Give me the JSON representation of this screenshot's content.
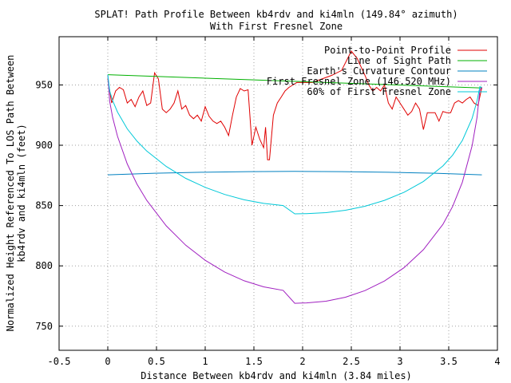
{
  "chart_data": {
    "type": "line",
    "title": "SPLAT! Path Profile Between kb4rdv and ki4mln (149.84° azimuth)",
    "subtitle": "With First Fresnel Zone",
    "xlabel": "Distance Between kb4rdv and ki4mln (3.84 miles)",
    "ylabel_lines": [
      "Normalized Height Referenced To LOS Path Between",
      "kb4rdv and ki4mln (feet)"
    ],
    "xlim": [
      -0.5,
      4
    ],
    "ylim": [
      730,
      990
    ],
    "x_ticks": [
      -0.5,
      0,
      0.5,
      1,
      1.5,
      2,
      2.5,
      3,
      3.5,
      4
    ],
    "x_tick_labels": [
      "-0.5",
      "0",
      "0.5",
      "1",
      "1.5",
      "2",
      "2.5",
      "3",
      "3.5",
      "4"
    ],
    "y_ticks": [
      750,
      800,
      850,
      900,
      950
    ],
    "y_tick_labels": [
      "750",
      "800",
      "850",
      "900",
      "950"
    ],
    "grid": true,
    "legend_position": "top-right",
    "series": [
      {
        "name": "Point-to-Point Profile",
        "color": "#e00000",
        "x": [
          0.0,
          0.04,
          0.08,
          0.12,
          0.16,
          0.2,
          0.24,
          0.28,
          0.32,
          0.36,
          0.4,
          0.44,
          0.48,
          0.52,
          0.56,
          0.6,
          0.64,
          0.68,
          0.72,
          0.76,
          0.8,
          0.84,
          0.88,
          0.92,
          0.96,
          1.0,
          1.04,
          1.08,
          1.12,
          1.16,
          1.2,
          1.24,
          1.28,
          1.32,
          1.36,
          1.4,
          1.44,
          1.48,
          1.52,
          1.56,
          1.6,
          1.62,
          1.64,
          1.66,
          1.7,
          1.74,
          1.78,
          1.82,
          1.86,
          1.9,
          1.94,
          1.98,
          2.02,
          2.1,
          2.2,
          2.3,
          2.4,
          2.5,
          2.56,
          2.6,
          2.64,
          2.68,
          2.72,
          2.76,
          2.8,
          2.84,
          2.88,
          2.92,
          2.96,
          3.0,
          3.04,
          3.08,
          3.12,
          3.16,
          3.2,
          3.24,
          3.28,
          3.32,
          3.36,
          3.4,
          3.44,
          3.48,
          3.52,
          3.56,
          3.6,
          3.64,
          3.68,
          3.72,
          3.76,
          3.8,
          3.84
        ],
        "y": [
          955,
          935,
          945,
          948,
          946,
          935,
          938,
          932,
          940,
          945,
          933,
          935,
          960,
          955,
          930,
          927,
          930,
          935,
          945,
          930,
          933,
          925,
          922,
          925,
          920,
          932,
          924,
          920,
          918,
          920,
          915,
          908,
          925,
          940,
          947,
          945,
          946,
          900,
          915,
          905,
          898,
          915,
          888,
          888,
          925,
          935,
          940,
          945,
          948,
          950,
          952,
          952,
          952,
          952,
          955,
          958,
          962,
          978,
          972,
          965,
          958,
          950,
          945,
          948,
          945,
          950,
          935,
          930,
          940,
          935,
          930,
          925,
          928,
          935,
          930,
          913,
          927,
          927,
          927,
          920,
          928,
          927,
          927,
          935,
          937,
          935,
          938,
          940,
          935,
          933,
          948
        ]
      },
      {
        "name": "Line of Sight Path",
        "color": "#00b000",
        "x": [
          0.0,
          3.84
        ],
        "y": [
          958.5,
          947.5
        ]
      },
      {
        "name": "Earth's Curvature Contour",
        "color": "#0080c0",
        "x": [
          0.0,
          0.48,
          0.96,
          1.44,
          1.92,
          2.4,
          2.88,
          3.36,
          3.84
        ],
        "y": [
          875.5,
          876.8,
          877.6,
          878.1,
          878.3,
          878.1,
          877.6,
          876.8,
          875.5
        ]
      },
      {
        "name": "First Fresnel Zone (146.520 MHz)",
        "color": "#a020c0",
        "x": [
          0.0,
          0.02,
          0.05,
          0.1,
          0.2,
          0.3,
          0.4,
          0.6,
          0.8,
          1.0,
          1.2,
          1.4,
          1.6,
          1.8,
          1.92,
          2.04,
          2.24,
          2.44,
          2.64,
          2.84,
          3.04,
          3.24,
          3.44,
          3.54,
          3.64,
          3.74,
          3.79,
          3.82,
          3.84
        ],
        "y": [
          958.5,
          936.3,
          923.0,
          907.4,
          884.5,
          867.7,
          854.3,
          833.2,
          817.1,
          804.6,
          794.9,
          787.6,
          782.6,
          779.7,
          769.0,
          769.3,
          770.7,
          774.0,
          779.5,
          787.4,
          798.4,
          813.4,
          834.4,
          849.3,
          869.4,
          899.6,
          922.9,
          945.5,
          948.0
        ]
      },
      {
        "name": "60% of First Fresnel Zone",
        "color": "#00c8d8",
        "x": [
          0.0,
          0.02,
          0.05,
          0.1,
          0.2,
          0.3,
          0.4,
          0.6,
          0.8,
          1.0,
          1.2,
          1.4,
          1.6,
          1.8,
          1.92,
          2.04,
          2.24,
          2.44,
          2.64,
          2.84,
          3.04,
          3.24,
          3.44,
          3.54,
          3.64,
          3.74,
          3.79,
          3.82,
          3.84
        ],
        "y": [
          958.5,
          945.0,
          937.0,
          927.5,
          913.6,
          903.4,
          895.2,
          882.4,
          872.6,
          865.1,
          859.2,
          854.8,
          851.8,
          850.0,
          843.1,
          843.3,
          844.1,
          846.1,
          849.4,
          854.3,
          860.9,
          870.0,
          882.8,
          891.8,
          904.0,
          922.3,
          936.6,
          948.5,
          948.0
        ]
      }
    ]
  }
}
